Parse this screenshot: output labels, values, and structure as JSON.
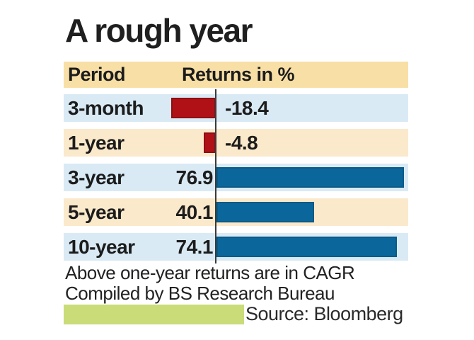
{
  "title": "A rough year",
  "table": {
    "col1_header": "Period",
    "col2_header": "Returns in %"
  },
  "chart_data": {
    "type": "bar",
    "orientation": "horizontal",
    "title": "A rough year",
    "value_label": "Returns in %",
    "categories": [
      "3-month",
      "1-year",
      "3-year",
      "5-year",
      "10-year"
    ],
    "values": [
      -18.4,
      -4.8,
      76.9,
      40.1,
      74.1
    ],
    "rows": [
      {
        "period": "3-month",
        "value": -18.4,
        "display": "-18.4"
      },
      {
        "period": "1-year",
        "value": -4.8,
        "display": "-4.8"
      },
      {
        "period": "3-year",
        "value": 76.9,
        "display": "76.9"
      },
      {
        "period": "5-year",
        "value": 40.1,
        "display": "40.1"
      },
      {
        "period": "10-year",
        "value": 74.1,
        "display": "74.1"
      }
    ],
    "xlim": [
      -20,
      79
    ],
    "grid": false,
    "legend": false,
    "negative_color": "#b01117",
    "positive_color": "#0b679b"
  },
  "footnotes": {
    "line1": "Above one-year returns are in CAGR",
    "line2": "Compiled by BS Research Bureau"
  },
  "source": {
    "label": "Source: Bloomberg",
    "bar_color": "#c9dc78"
  },
  "colors": {
    "header_bg": "#f8dfa6",
    "row_blue_bg": "#d9eaf5",
    "row_peach_bg": "#fbe9cb",
    "zero_line": "#3b3b3b",
    "text": "#1c1c1c"
  }
}
